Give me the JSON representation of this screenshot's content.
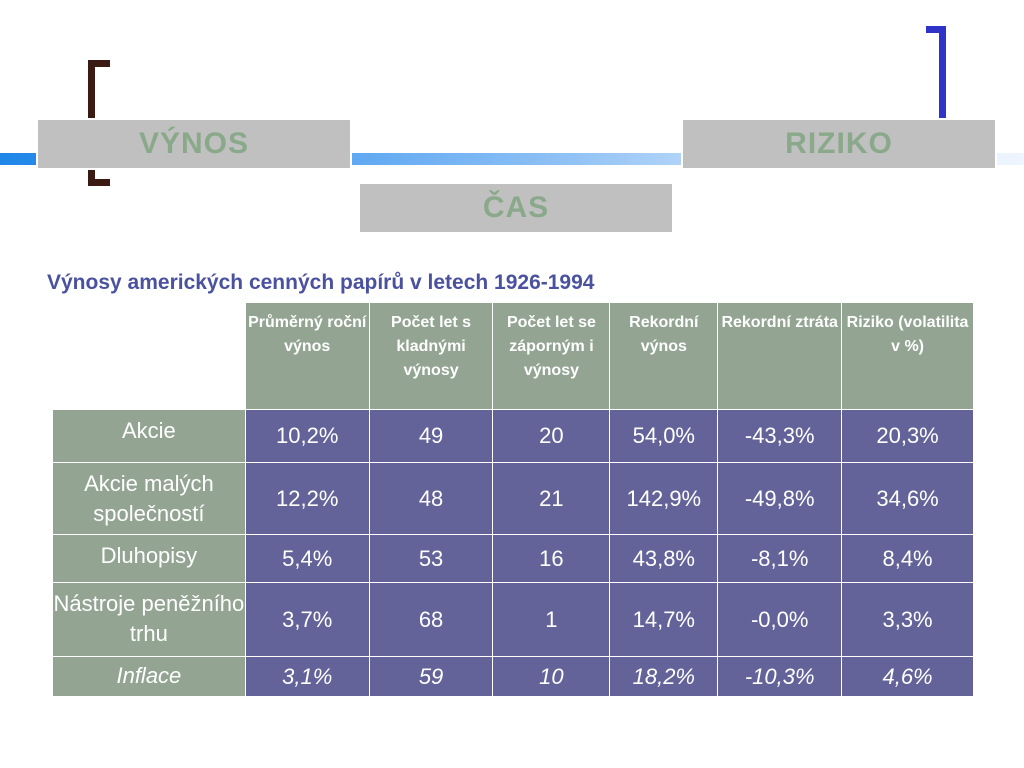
{
  "boxes": {
    "vynos": "VÝNOS",
    "riziko": "RIZIKO",
    "cas": "ČAS"
  },
  "subtitle": "Výnosy amerických cenných papírů v letech 1926-1994",
  "table": {
    "headers": [
      "Průměrný roční výnos",
      "Počet let s kladnými výnosy",
      "Počet let se záporným i výnosy",
      "Rekordní výnos",
      "Rekordní ztráta",
      "Riziko (volatilita v %)"
    ],
    "rows": [
      {
        "label": "Akcie",
        "values": [
          "10,2%",
          "49",
          "20",
          "54,0%",
          "-43,3%",
          "20,3%"
        ]
      },
      {
        "label": "Akcie malých společností",
        "values": [
          "12,2%",
          "48",
          "21",
          "142,9%",
          "-49,8%",
          "34,6%"
        ]
      },
      {
        "label": "Dluhopisy",
        "values": [
          "5,4%",
          "53",
          "16",
          "43,8%",
          "-8,1%",
          "8,4%"
        ]
      },
      {
        "label": "Nástroje peněžního trhu",
        "values": [
          "3,7%",
          "68",
          "1",
          "14,7%",
          "-0,0%",
          "3,3%"
        ]
      },
      {
        "label": "Inflace",
        "values": [
          "3,1%",
          "59",
          "10",
          "18,2%",
          "-10,3%",
          "4,6%"
        ]
      }
    ]
  },
  "colors": {
    "header_bg": "#93a592",
    "cell_bg": "#63639a",
    "subtitle": "#4a52a0",
    "box_bg": "#c0c0c0",
    "box_text": "#8aa98a"
  }
}
